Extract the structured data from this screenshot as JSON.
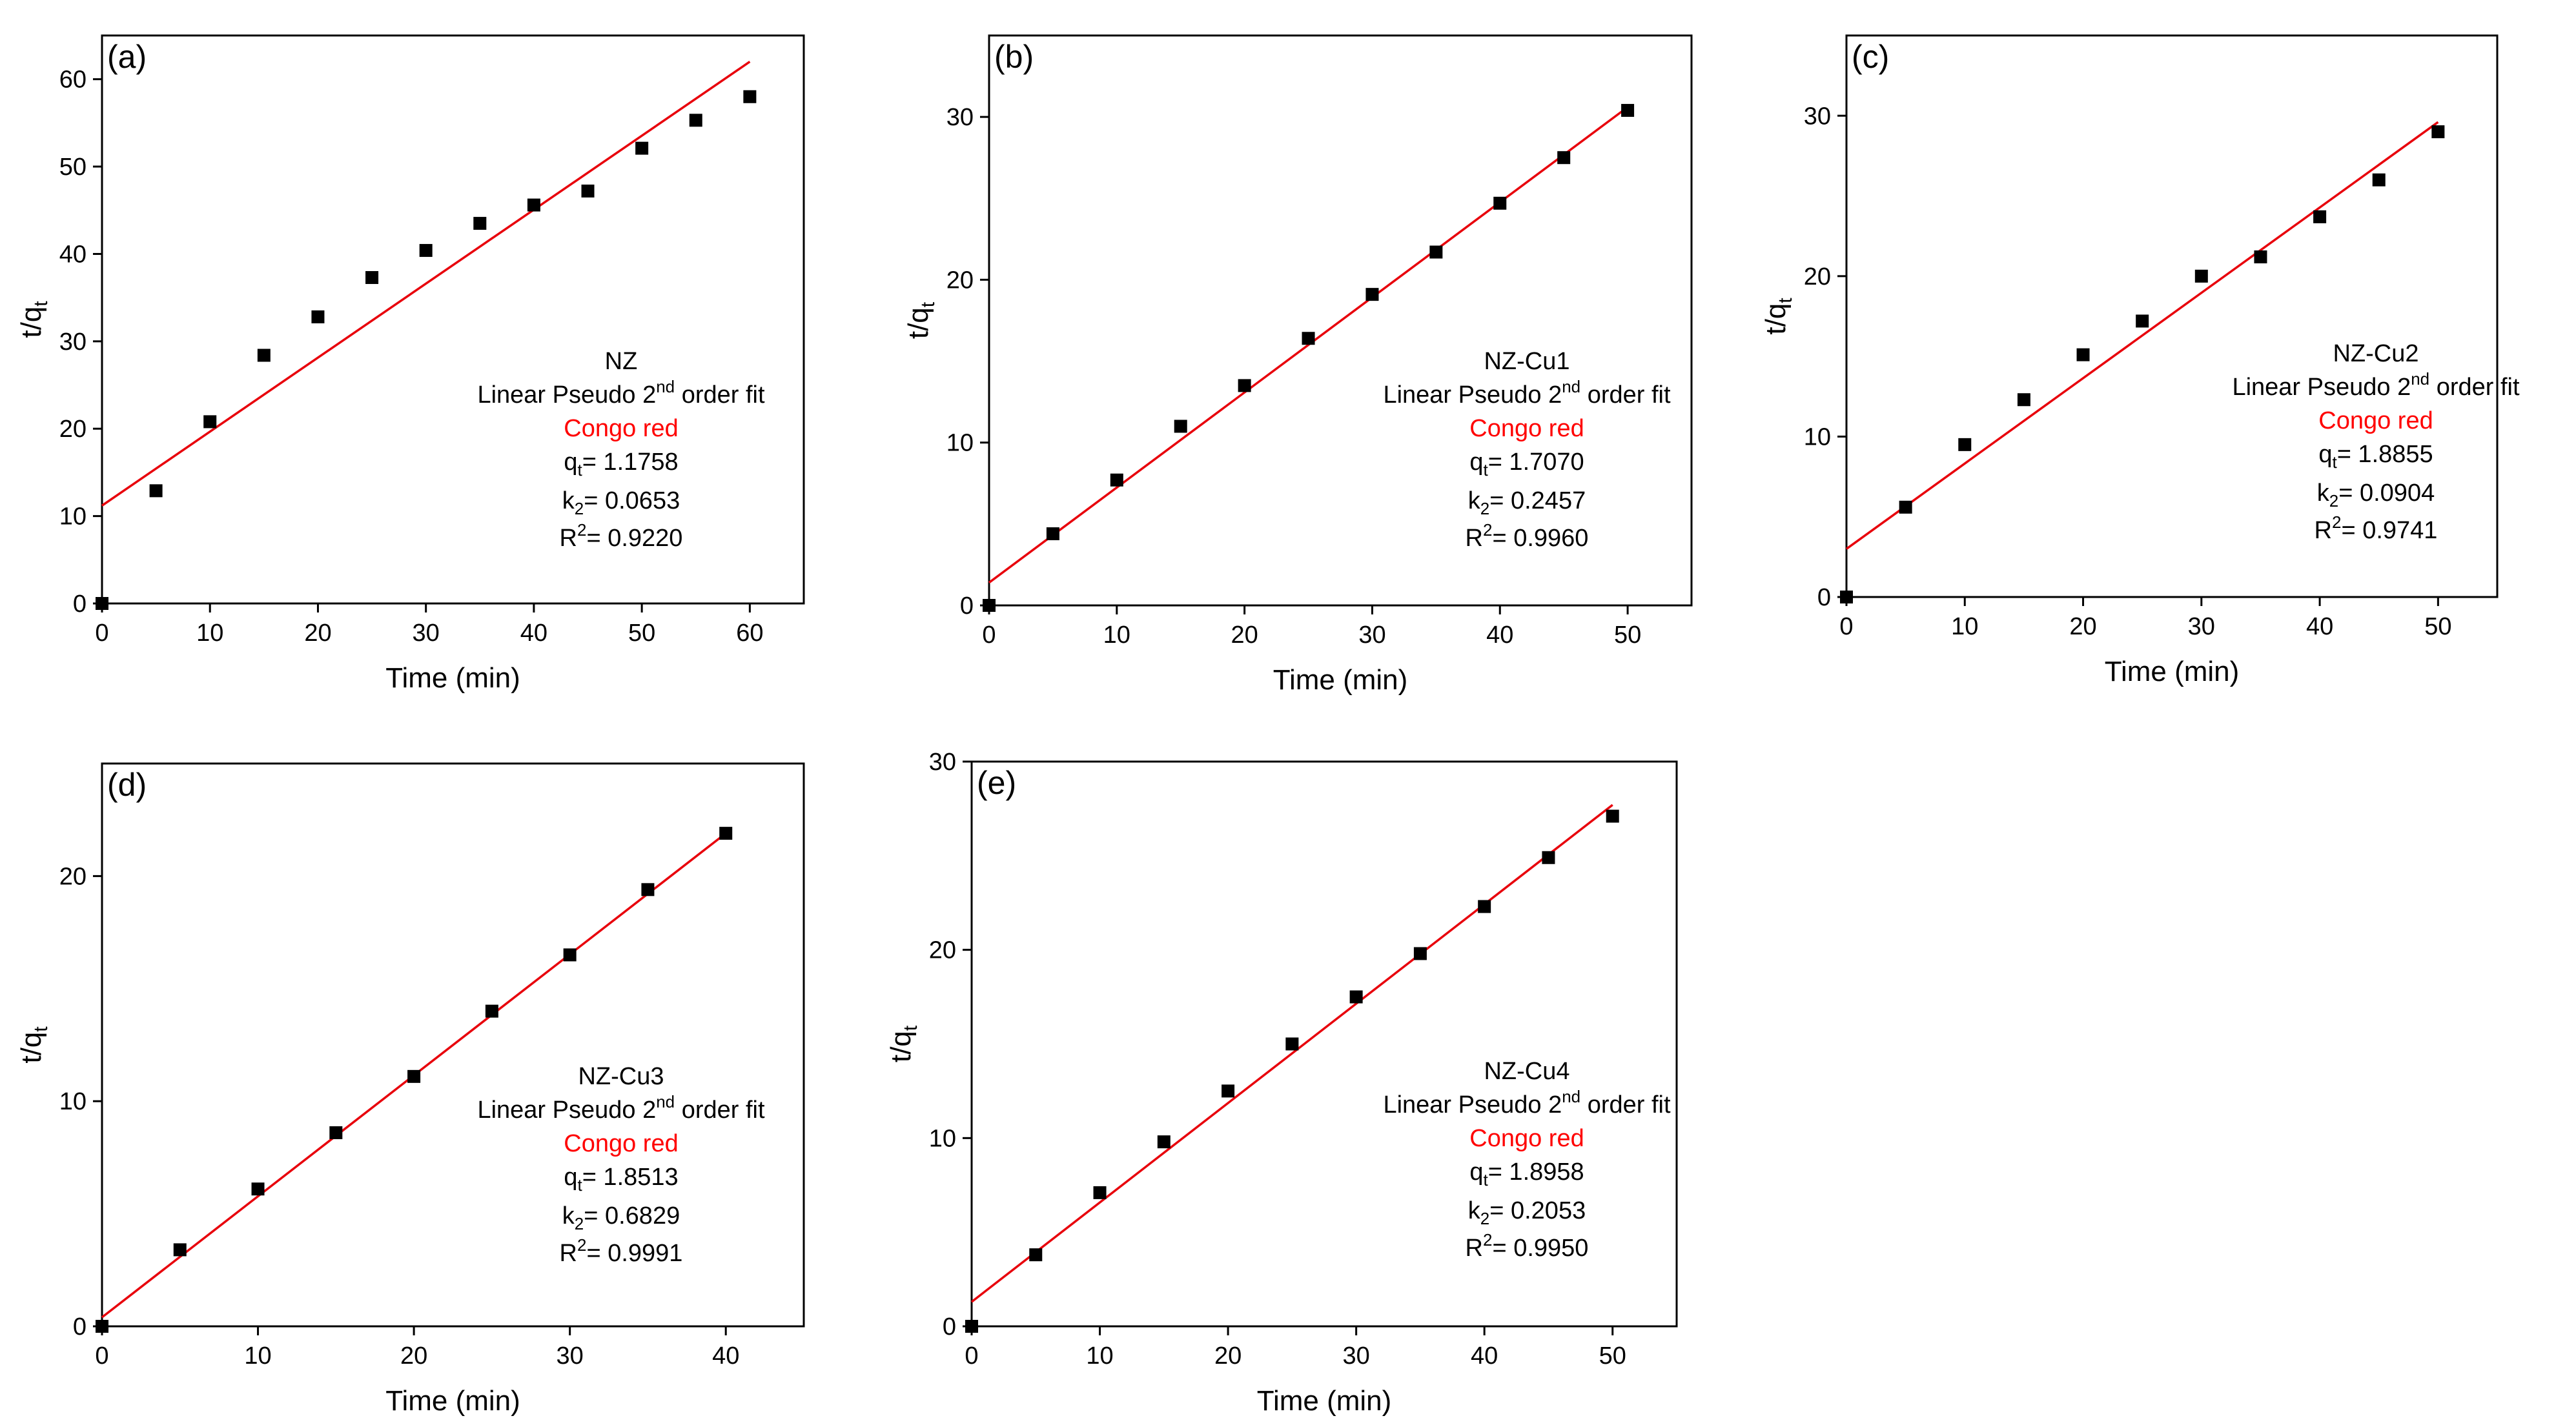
{
  "chart_data": [
    {
      "type": "scatter",
      "panel_label": "(a)",
      "xlabel": "Time (min)",
      "ylabel": {
        "main": "t/q",
        "sub": "t"
      },
      "xlim": [
        0,
        65
      ],
      "ylim": [
        0,
        65
      ],
      "xticks": [
        0,
        10,
        20,
        30,
        40,
        50,
        60
      ],
      "yticks": [
        0,
        10,
        20,
        30,
        40,
        50,
        60
      ],
      "series": [
        {
          "x": [
            0,
            5,
            10,
            15,
            20,
            25,
            30,
            35,
            40,
            45,
            50,
            55,
            60
          ],
          "y": [
            0,
            12.9,
            20.8,
            28.4,
            32.8,
            37.3,
            40.4,
            43.5,
            45.6,
            47.2,
            52.1,
            55.3,
            58.0
          ]
        }
      ],
      "fit_line": {
        "x": [
          0,
          60
        ],
        "y": [
          11.2,
          62.0
        ]
      },
      "annotation": {
        "sample": "NZ",
        "method": {
          "pre": "Linear Pseudo 2",
          "sup": "nd",
          "post": " order fit"
        },
        "dye": "Congo red",
        "qt": {
          "main": "q",
          "sub": "t",
          "value": "= 1.1758"
        },
        "k2": {
          "main": "k",
          "sub": "2",
          "value": "= 0.0653"
        },
        "r2": {
          "main": "R",
          "sup": "2",
          "value": "= 0.9220"
        }
      }
    },
    {
      "type": "scatter",
      "panel_label": "(b)",
      "xlabel": "Time (min)",
      "ylabel": {
        "main": "t/q",
        "sub": "t"
      },
      "xlim": [
        0,
        55
      ],
      "ylim": [
        0,
        35
      ],
      "xticks": [
        0,
        10,
        20,
        30,
        40,
        50
      ],
      "yticks": [
        0,
        10,
        20,
        30
      ],
      "series": [
        {
          "x": [
            0,
            5,
            10,
            15,
            20,
            25,
            30,
            35,
            40,
            45,
            50
          ],
          "y": [
            0,
            4.4,
            7.7,
            11.0,
            13.5,
            16.4,
            19.1,
            21.7,
            24.7,
            27.5,
            30.4
          ]
        }
      ],
      "fit_line": {
        "x": [
          0,
          50
        ],
        "y": [
          1.4,
          30.6
        ]
      },
      "annotation": {
        "sample": "NZ-Cu1",
        "method": {
          "pre": "Linear Pseudo 2",
          "sup": "nd",
          "post": " order fit"
        },
        "dye": "Congo red",
        "qt": {
          "main": "q",
          "sub": "t",
          "value": "= 1.7070"
        },
        "k2": {
          "main": "k",
          "sub": "2",
          "value": "= 0.2457"
        },
        "r2": {
          "main": "R",
          "sup": "2",
          "value": "= 0.9960"
        }
      }
    },
    {
      "type": "scatter",
      "panel_label": "(c)",
      "xlabel": "Time (min)",
      "ylabel": {
        "main": "t/q",
        "sub": "t"
      },
      "xlim": [
        0,
        55
      ],
      "ylim": [
        0,
        35
      ],
      "xticks": [
        0,
        10,
        20,
        30,
        40,
        50
      ],
      "yticks": [
        0,
        10,
        20,
        30
      ],
      "series": [
        {
          "x": [
            0,
            5,
            10,
            15,
            20,
            25,
            30,
            35,
            40,
            45,
            50
          ],
          "y": [
            0,
            5.6,
            9.5,
            12.3,
            15.1,
            17.2,
            20.0,
            21.2,
            23.7,
            26.0,
            29.0
          ]
        }
      ],
      "fit_line": {
        "x": [
          0,
          50
        ],
        "y": [
          3.0,
          29.6
        ]
      },
      "annotation": {
        "sample": "NZ-Cu2",
        "method": {
          "pre": "Linear Pseudo 2",
          "sup": "nd",
          "post": " order fit"
        },
        "dye": "Congo red",
        "qt": {
          "main": "q",
          "sub": "t",
          "value": "= 1.8855"
        },
        "k2": {
          "main": "k",
          "sub": "2",
          "value": "= 0.0904"
        },
        "r2": {
          "main": "R",
          "sup": "2",
          "value": "= 0.9741"
        }
      }
    },
    {
      "type": "scatter",
      "panel_label": "(d)",
      "xlabel": "Time (min)",
      "ylabel": {
        "main": "t/q",
        "sub": "t"
      },
      "xlim": [
        0,
        45
      ],
      "ylim": [
        0,
        25
      ],
      "xticks": [
        0,
        10,
        20,
        30,
        40
      ],
      "yticks": [
        0,
        10,
        20
      ],
      "series": [
        {
          "x": [
            0,
            5,
            10,
            15,
            20,
            25,
            30,
            35,
            40
          ],
          "y": [
            0,
            3.4,
            6.1,
            8.6,
            11.1,
            14.0,
            16.5,
            19.4,
            21.9
          ]
        }
      ],
      "fit_line": {
        "x": [
          0,
          40
        ],
        "y": [
          0.4,
          21.9
        ]
      },
      "annotation": {
        "sample": "NZ-Cu3",
        "method": {
          "pre": "Linear Pseudo 2",
          "sup": "nd",
          "post": " order fit"
        },
        "dye": "Congo red",
        "qt": {
          "main": "q",
          "sub": "t",
          "value": "= 1.8513"
        },
        "k2": {
          "main": "k",
          "sub": "2",
          "value": "= 0.6829"
        },
        "r2": {
          "main": "R",
          "sup": "2",
          "value": "= 0.9991"
        }
      }
    },
    {
      "type": "scatter",
      "panel_label": "(e)",
      "xlabel": "Time (min)",
      "ylabel": {
        "main": "t/q",
        "sub": "t"
      },
      "xlim": [
        0,
        55
      ],
      "ylim": [
        0,
        30
      ],
      "xticks": [
        0,
        10,
        20,
        30,
        40,
        50
      ],
      "yticks": [
        0,
        10,
        20,
        30
      ],
      "series": [
        {
          "x": [
            0,
            5,
            10,
            15,
            20,
            25,
            30,
            35,
            40,
            45,
            50
          ],
          "y": [
            0,
            3.8,
            7.1,
            9.8,
            12.5,
            15.0,
            17.5,
            19.8,
            22.3,
            24.9,
            27.1
          ]
        }
      ],
      "fit_line": {
        "x": [
          0,
          50
        ],
        "y": [
          1.3,
          27.7
        ]
      },
      "annotation": {
        "sample": "NZ-Cu4",
        "method": {
          "pre": "Linear Pseudo 2",
          "sup": "nd",
          "post": " order fit"
        },
        "dye": "Congo red",
        "qt": {
          "main": "q",
          "sub": "t",
          "value": "= 1.8958"
        },
        "k2": {
          "main": "k",
          "sub": "2",
          "value": "= 0.2053"
        },
        "r2": {
          "main": "R",
          "sup": "2",
          "value": "= 0.9950"
        }
      }
    }
  ],
  "colors": {
    "fit": "#e8000b",
    "dye_label": "#ff0000",
    "points": "#000000"
  }
}
